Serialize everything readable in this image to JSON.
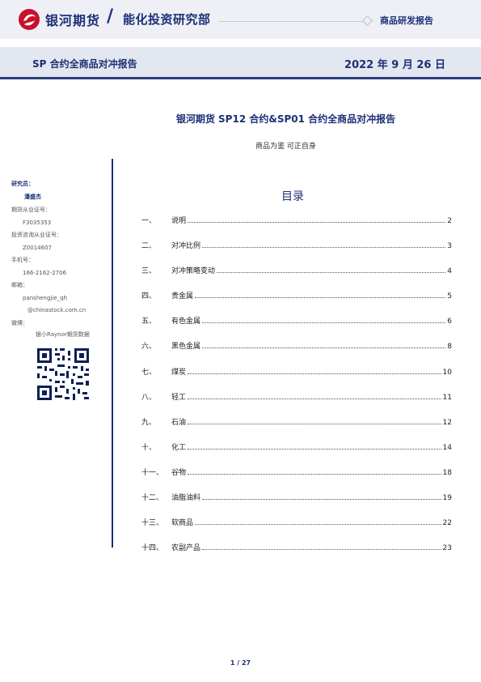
{
  "header": {
    "brand": "银河期货",
    "separator": "/",
    "department": "能化投资研究部",
    "category": "商品研发报告",
    "logo_color": "#c8102e",
    "accent": "#1d2f77"
  },
  "title_band": {
    "left": "SP 合约全商品对冲报告",
    "right": "2022 年 9 月 26 日"
  },
  "report": {
    "title": "银河期货 SP12 合约&SP01 合约全商品对冲报告",
    "subtitle": "商品为鉴  可正自身"
  },
  "sidebar": {
    "researcher_label": "研究员：",
    "researcher_name": "潘盛杰",
    "futures_license_label": "期货从业证号：",
    "futures_license": "F3035353",
    "advisor_license_label": "投资咨询从业证号：",
    "advisor_license": "Z0014607",
    "phone_label": "手机号：",
    "phone": "166-2162-2706",
    "email_label": "邮箱：",
    "email_line1": "panshengjie_qh",
    "email_line2": "@chinastock.com.cn",
    "wechat_label": "微博：",
    "wechat": "银小Raynor期货数据"
  },
  "toc": {
    "title": "目录",
    "items": [
      {
        "num": "一、",
        "label": "说明",
        "page": "2"
      },
      {
        "num": "二、",
        "label": "对冲比例",
        "page": "3"
      },
      {
        "num": "三、",
        "label": "对冲策略变动",
        "page": "4"
      },
      {
        "num": "四、",
        "label": "贵金属",
        "page": "5"
      },
      {
        "num": "五、",
        "label": "有色金属",
        "page": "6"
      },
      {
        "num": "六、",
        "label": "黑色金属",
        "page": "8"
      },
      {
        "num": "七、",
        "label": "煤炭",
        "page": "10"
      },
      {
        "num": "八、",
        "label": "轻工",
        "page": "11"
      },
      {
        "num": "九、",
        "label": "石油",
        "page": "12"
      },
      {
        "num": "十、",
        "label": "化工",
        "page": "14"
      },
      {
        "num": "十一、",
        "label": "谷物",
        "page": "18"
      },
      {
        "num": "十二、",
        "label": "油脂油料",
        "page": "19"
      },
      {
        "num": "十三、",
        "label": "软商品",
        "page": "22"
      },
      {
        "num": "十四、",
        "label": "农副产品",
        "page": "23"
      }
    ]
  },
  "footer": {
    "page_indicator": "1 / 27"
  }
}
